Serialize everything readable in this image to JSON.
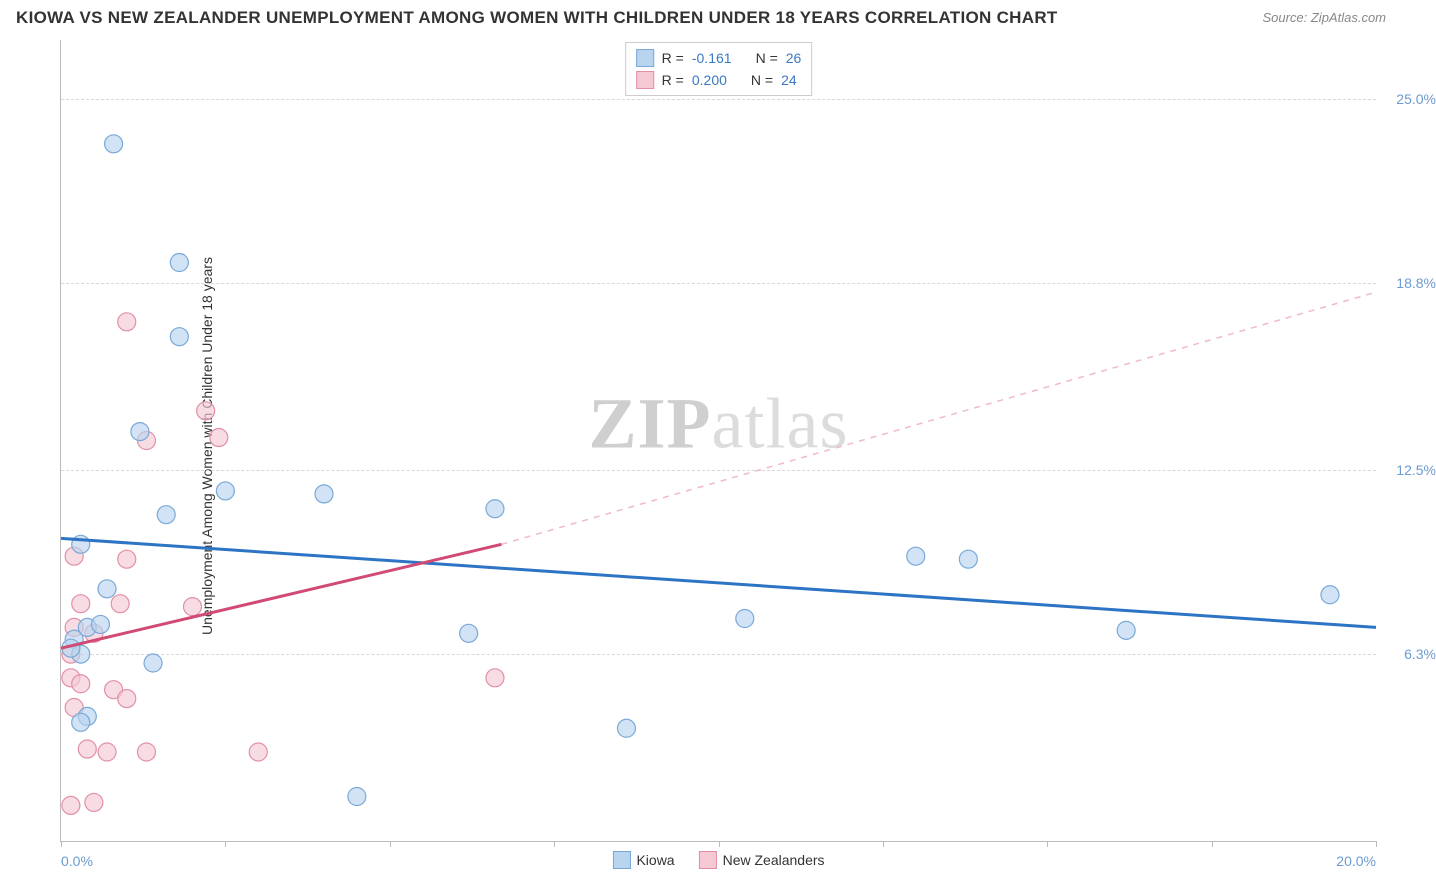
{
  "title": "KIOWA VS NEW ZEALANDER UNEMPLOYMENT AMONG WOMEN WITH CHILDREN UNDER 18 YEARS CORRELATION CHART",
  "source": "Source: ZipAtlas.com",
  "ylabel": "Unemployment Among Women with Children Under 18 years",
  "watermark_a": "ZIP",
  "watermark_b": "atlas",
  "chart": {
    "type": "scatter",
    "xlim": [
      0,
      20
    ],
    "ylim": [
      0,
      27
    ],
    "x_ticks": [
      0,
      2.5,
      5,
      7.5,
      10,
      12.5,
      15,
      17.5,
      20
    ],
    "x_tick_labels_visible": {
      "0": "0.0%",
      "20": "20.0%"
    },
    "y_gridlines": [
      6.3,
      12.5,
      18.8,
      25.0
    ],
    "y_tick_labels": [
      "6.3%",
      "12.5%",
      "18.8%",
      "25.0%"
    ],
    "background_color": "#ffffff",
    "grid_color": "#d8d8d8",
    "axis_color": "#bbbbbb",
    "tick_label_color": "#6b9bd1",
    "series": [
      {
        "name": "Kiowa",
        "color_fill": "#b9d4ee",
        "color_stroke": "#7aa9d8",
        "marker_radius": 9,
        "fill_opacity": 0.65,
        "R": "-0.161",
        "N": "26",
        "trend": {
          "x1": 0,
          "y1": 10.2,
          "x2": 20,
          "y2": 7.2,
          "color": "#2d74c4",
          "width": 3,
          "dash": "none"
        },
        "points": [
          [
            0.8,
            23.5
          ],
          [
            1.8,
            19.5
          ],
          [
            1.8,
            17.0
          ],
          [
            1.2,
            13.8
          ],
          [
            1.6,
            11.0
          ],
          [
            2.5,
            11.8
          ],
          [
            4.0,
            11.7
          ],
          [
            6.6,
            11.2
          ],
          [
            0.3,
            10.0
          ],
          [
            0.7,
            8.5
          ],
          [
            0.2,
            6.8
          ],
          [
            0.3,
            6.3
          ],
          [
            1.4,
            6.0
          ],
          [
            0.4,
            4.2
          ],
          [
            0.3,
            4.0
          ],
          [
            6.2,
            7.0
          ],
          [
            8.6,
            3.8
          ],
          [
            4.5,
            1.5
          ],
          [
            10.4,
            7.5
          ],
          [
            13.8,
            9.5
          ],
          [
            13.0,
            9.6
          ],
          [
            16.2,
            7.1
          ],
          [
            19.3,
            8.3
          ],
          [
            0.4,
            7.2
          ],
          [
            0.15,
            6.5
          ],
          [
            0.6,
            7.3
          ]
        ]
      },
      {
        "name": "New Zealanders",
        "color_fill": "#f5c9d4",
        "color_stroke": "#e38fa6",
        "marker_radius": 9,
        "fill_opacity": 0.65,
        "R": "0.200",
        "N": "24",
        "trend_solid": {
          "x1": 0,
          "y1": 6.5,
          "x2": 6.7,
          "y2": 10.0,
          "color": "#d14a73",
          "width": 3
        },
        "trend_dashed": {
          "x1": 6.7,
          "y1": 10.0,
          "x2": 20,
          "y2": 18.5,
          "color": "#f0b9c7",
          "width": 1.5,
          "dash": "6,6"
        },
        "points": [
          [
            1.0,
            17.5
          ],
          [
            2.2,
            14.5
          ],
          [
            2.4,
            13.6
          ],
          [
            1.3,
            13.5
          ],
          [
            0.2,
            9.6
          ],
          [
            1.0,
            9.5
          ],
          [
            0.3,
            8.0
          ],
          [
            0.9,
            8.0
          ],
          [
            2.0,
            7.9
          ],
          [
            0.2,
            7.2
          ],
          [
            0.5,
            7.0
          ],
          [
            0.15,
            6.3
          ],
          [
            0.15,
            5.5
          ],
          [
            0.3,
            5.3
          ],
          [
            0.8,
            5.1
          ],
          [
            1.0,
            4.8
          ],
          [
            0.4,
            3.1
          ],
          [
            0.7,
            3.0
          ],
          [
            1.3,
            3.0
          ],
          [
            3.0,
            3.0
          ],
          [
            0.5,
            1.3
          ],
          [
            0.15,
            1.2
          ],
          [
            6.6,
            5.5
          ],
          [
            0.2,
            4.5
          ]
        ]
      }
    ]
  },
  "top_legend": {
    "r_label": "R =",
    "n_label": "N ="
  },
  "bottom_legend": {
    "items": [
      "Kiowa",
      "New Zealanders"
    ]
  }
}
